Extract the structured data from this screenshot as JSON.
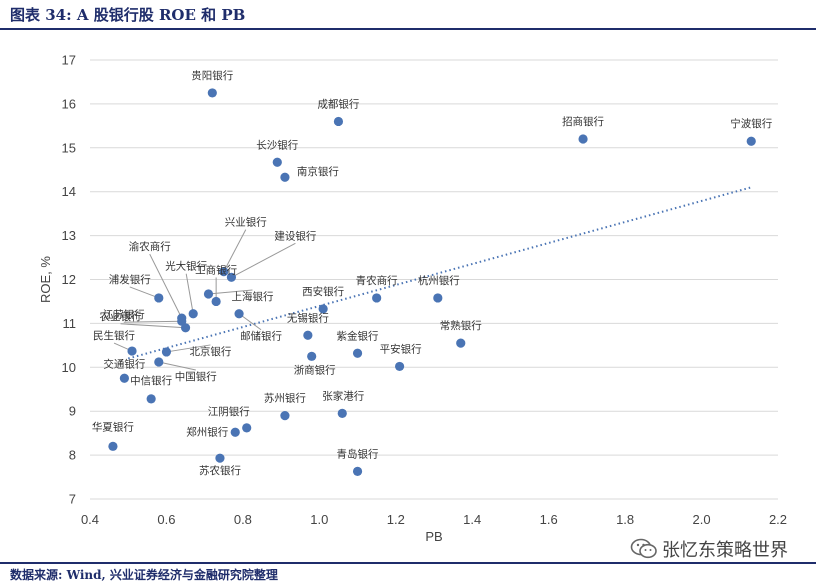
{
  "figure_title": "图表 34:  A 股银行股 ROE 和 PB",
  "source_text": "数据来源: Wind, 兴业证券经济与金融研究院整理",
  "watermark_text": "张忆东策略世界",
  "colors": {
    "point": "#4a74b4",
    "trend": "#4a74b4",
    "grid": "#d9d9d9",
    "title": "#1f2d6b"
  },
  "chart_data": {
    "type": "scatter",
    "xlabel": "PB",
    "ylabel": "ROE, %",
    "xlim": [
      0.4,
      2.2
    ],
    "ylim": [
      7,
      17
    ],
    "xticks": [
      "0.4",
      "0.6",
      "0.8",
      "1.0",
      "1.2",
      "1.4",
      "1.6",
      "1.8",
      "2.0",
      "2.2"
    ],
    "yticks": [
      "7",
      "8",
      "9",
      "10",
      "11",
      "12",
      "13",
      "14",
      "15",
      "16",
      "17"
    ],
    "grid": "horizontal",
    "trendline": {
      "style": "dotted",
      "x": [
        0.5,
        2.13
      ],
      "y": [
        10.2,
        14.1
      ]
    },
    "points": [
      {
        "name": "贵阳银行",
        "x": 0.72,
        "y": 16.25
      },
      {
        "name": "成都银行",
        "x": 1.05,
        "y": 15.6
      },
      {
        "name": "招商银行",
        "x": 1.69,
        "y": 15.2
      },
      {
        "name": "宁波银行",
        "x": 2.13,
        "y": 15.15
      },
      {
        "name": "长沙银行",
        "x": 0.89,
        "y": 14.67
      },
      {
        "name": "南京银行",
        "x": 0.91,
        "y": 14.33
      },
      {
        "name": "兴业银行",
        "x": 0.75,
        "y": 12.18
      },
      {
        "name": "建设银行",
        "x": 0.77,
        "y": 12.05
      },
      {
        "name": "工商银行",
        "x": 0.73,
        "y": 11.5
      },
      {
        "name": "渝农商行",
        "x": 0.64,
        "y": 11.12
      },
      {
        "name": "光大银行",
        "x": 0.67,
        "y": 11.22
      },
      {
        "name": "上海银行",
        "x": 0.71,
        "y": 11.67
      },
      {
        "name": "浦发银行",
        "x": 0.58,
        "y": 11.58
      },
      {
        "name": "江苏银行",
        "x": 0.64,
        "y": 11.05
      },
      {
        "name": "农业银行",
        "x": 0.65,
        "y": 10.9
      },
      {
        "name": "邮储银行",
        "x": 0.79,
        "y": 11.22
      },
      {
        "name": "民生银行",
        "x": 0.51,
        "y": 10.37
      },
      {
        "name": "北京银行",
        "x": 0.6,
        "y": 10.35
      },
      {
        "name": "交通银行",
        "x": 0.49,
        "y": 9.75
      },
      {
        "name": "中国银行",
        "x": 0.58,
        "y": 10.12
      },
      {
        "name": "中信银行",
        "x": 0.56,
        "y": 9.28
      },
      {
        "name": "西安银行",
        "x": 1.01,
        "y": 11.33
      },
      {
        "name": "无锡银行",
        "x": 0.97,
        "y": 10.73
      },
      {
        "name": "浙商银行",
        "x": 0.98,
        "y": 10.25
      },
      {
        "name": "紫金银行",
        "x": 1.1,
        "y": 10.32
      },
      {
        "name": "青农商行",
        "x": 1.15,
        "y": 11.58
      },
      {
        "name": "杭州银行",
        "x": 1.31,
        "y": 11.58
      },
      {
        "name": "平安银行",
        "x": 1.21,
        "y": 10.02
      },
      {
        "name": "常熟银行",
        "x": 1.37,
        "y": 10.55
      },
      {
        "name": "苏州银行",
        "x": 0.91,
        "y": 8.9
      },
      {
        "name": "张家港行",
        "x": 1.06,
        "y": 8.95
      },
      {
        "name": "江阴银行",
        "x": 0.81,
        "y": 8.62
      },
      {
        "name": "郑州银行",
        "x": 0.78,
        "y": 8.52
      },
      {
        "name": "华夏银行",
        "x": 0.46,
        "y": 8.2
      },
      {
        "name": "苏农银行",
        "x": 0.74,
        "y": 7.93
      },
      {
        "name": "青岛银行",
        "x": 1.1,
        "y": 7.63
      }
    ]
  }
}
